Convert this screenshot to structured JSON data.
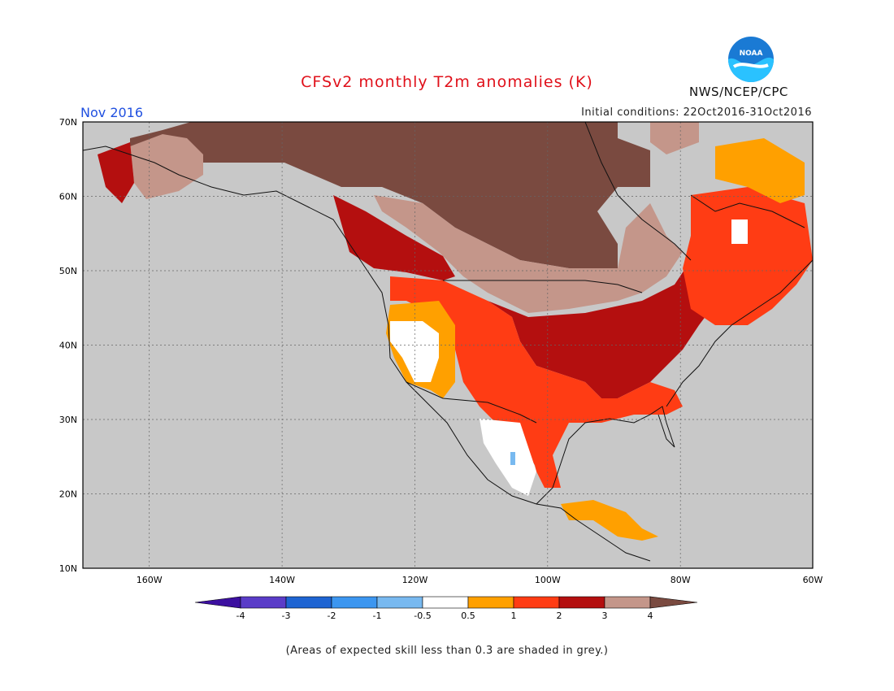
{
  "header": {
    "title": "CFSv2 monthly T2m anomalies (K)",
    "month": "Nov 2016",
    "initial_conditions": "Initial conditions: 22Oct2016-31Oct2016",
    "org": "NWS/NCEP/CPC",
    "logo_text": "NOAA"
  },
  "map": {
    "lon_range": [
      -171,
      -60
    ],
    "lat_range": [
      10,
      70
    ],
    "lat_labels": [
      "70N",
      "60N",
      "50N",
      "40N",
      "30N",
      "20N",
      "10N"
    ],
    "lon_labels": [
      "160W",
      "140W",
      "120W",
      "100W",
      "80W",
      "60W"
    ],
    "grey_color": "#c8c8c8"
  },
  "colorbar": {
    "labels": [
      "-4",
      "-3",
      "-2",
      "-1",
      "-0.5",
      "0.5",
      "1",
      "2",
      "3",
      "4"
    ],
    "colors": [
      "#3c10a0",
      "#5a3cc8",
      "#1e64d2",
      "#3c96f0",
      "#78b9f0",
      "#ffffff",
      "#ffa000",
      "#ff3c14",
      "#b40f0f",
      "#c4968a",
      "#7a4a40"
    ]
  },
  "footer": {
    "note": "(Areas of expected skill less than 0.3 are shaded in grey.)"
  }
}
